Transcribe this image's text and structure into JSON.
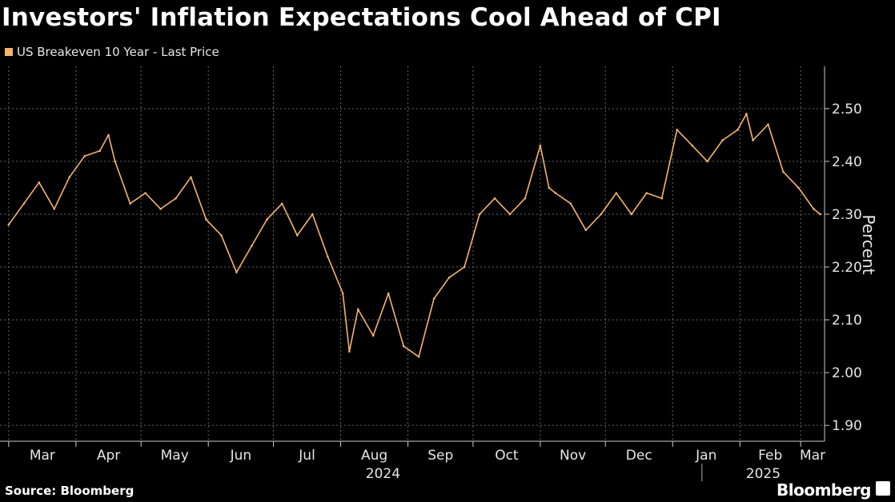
{
  "header": {
    "title": "Investors' Inflation Expectations Cool Ahead of CPI",
    "legend_label": "US Breakeven 10 Year - Last Price"
  },
  "footer": {
    "source": "Source: Bloomberg",
    "brand": "Bloomberg"
  },
  "colors": {
    "series": "#f5b46e",
    "background": "#000000",
    "grid": "#666666",
    "text": "#ffffff"
  },
  "chart_data": {
    "type": "line",
    "ylabel": "Percent",
    "ylim": [
      1.87,
      2.58
    ],
    "yticks": [
      1.9,
      2.0,
      2.1,
      2.2,
      2.3,
      2.4,
      2.5
    ],
    "xlabel": "",
    "xticks": [
      "Mar",
      "Apr",
      "May",
      "Jun",
      "Jul",
      "Aug",
      "Sep",
      "Oct",
      "Nov",
      "Dec",
      "Jan",
      "Feb",
      "Mar"
    ],
    "year_labels": [
      "2024",
      "2025"
    ],
    "grid": true,
    "legend": "top-left",
    "series": [
      {
        "name": "US Breakeven 10 Year - Last Price",
        "x": [
          "2024-03-01",
          "2024-03-08",
          "2024-03-15",
          "2024-03-22",
          "2024-03-29",
          "2024-04-05",
          "2024-04-12",
          "2024-04-16",
          "2024-04-19",
          "2024-04-26",
          "2024-05-03",
          "2024-05-10",
          "2024-05-17",
          "2024-05-24",
          "2024-05-31",
          "2024-06-07",
          "2024-06-14",
          "2024-06-21",
          "2024-06-28",
          "2024-07-05",
          "2024-07-12",
          "2024-07-19",
          "2024-07-26",
          "2024-08-02",
          "2024-08-05",
          "2024-08-09",
          "2024-08-16",
          "2024-08-23",
          "2024-08-30",
          "2024-09-06",
          "2024-09-13",
          "2024-09-20",
          "2024-09-27",
          "2024-10-04",
          "2024-10-11",
          "2024-10-18",
          "2024-10-25",
          "2024-11-01",
          "2024-11-05",
          "2024-11-08",
          "2024-11-15",
          "2024-11-22",
          "2024-11-29",
          "2024-12-06",
          "2024-12-13",
          "2024-12-20",
          "2024-12-27",
          "2025-01-03",
          "2025-01-10",
          "2025-01-17",
          "2025-01-24",
          "2025-01-31",
          "2025-02-04",
          "2025-02-07",
          "2025-02-14",
          "2025-02-21",
          "2025-02-28",
          "2025-03-07",
          "2025-03-10"
        ],
        "values": [
          2.28,
          2.32,
          2.36,
          2.31,
          2.37,
          2.41,
          2.42,
          2.45,
          2.4,
          2.32,
          2.34,
          2.31,
          2.33,
          2.37,
          2.29,
          2.26,
          2.19,
          2.24,
          2.29,
          2.32,
          2.26,
          2.3,
          2.22,
          2.15,
          2.04,
          2.12,
          2.07,
          2.15,
          2.05,
          2.03,
          2.14,
          2.18,
          2.2,
          2.3,
          2.33,
          2.3,
          2.33,
          2.43,
          2.35,
          2.34,
          2.32,
          2.27,
          2.3,
          2.34,
          2.3,
          2.34,
          2.33,
          2.46,
          2.43,
          2.4,
          2.44,
          2.46,
          2.49,
          2.44,
          2.47,
          2.38,
          2.35,
          2.31,
          2.3
        ]
      }
    ]
  }
}
